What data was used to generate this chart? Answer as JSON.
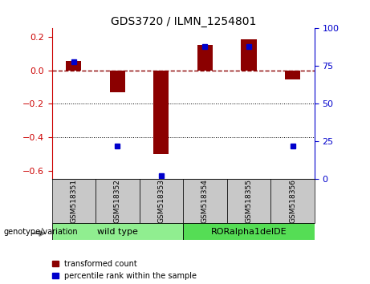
{
  "title": "GDS3720 / ILMN_1254801",
  "samples": [
    "GSM518351",
    "GSM518352",
    "GSM518353",
    "GSM518354",
    "GSM518355",
    "GSM518356"
  ],
  "red_values": [
    0.055,
    -0.13,
    -0.5,
    0.15,
    0.185,
    -0.055
  ],
  "blue_percentiles": [
    78,
    22,
    2,
    88,
    88,
    22
  ],
  "ylim_left": [
    -0.65,
    0.25
  ],
  "ylim_right": [
    0,
    100
  ],
  "yticks_left": [
    0.2,
    0.0,
    -0.2,
    -0.4,
    -0.6
  ],
  "yticks_right": [
    100,
    75,
    50,
    25,
    0
  ],
  "dotted_lines": [
    -0.2,
    -0.4
  ],
  "group1_label": "wild type",
  "group2_label": "RORalpha1delDE",
  "group1_color": "#90EE90",
  "group2_color": "#55DD55",
  "group1_indices": [
    0,
    1,
    2
  ],
  "group2_indices": [
    3,
    4,
    5
  ],
  "bar_color_red": "#8B0000",
  "bar_color_blue": "#0000CC",
  "bar_width": 0.35,
  "legend_red": "transformed count",
  "legend_blue": "percentile rank within the sample",
  "left_tick_color": "#CC0000",
  "right_tick_color": "#0000CC",
  "background_color": "#FFFFFF",
  "plot_bg_color": "#FFFFFF",
  "header_gray": "#C8C8C8"
}
